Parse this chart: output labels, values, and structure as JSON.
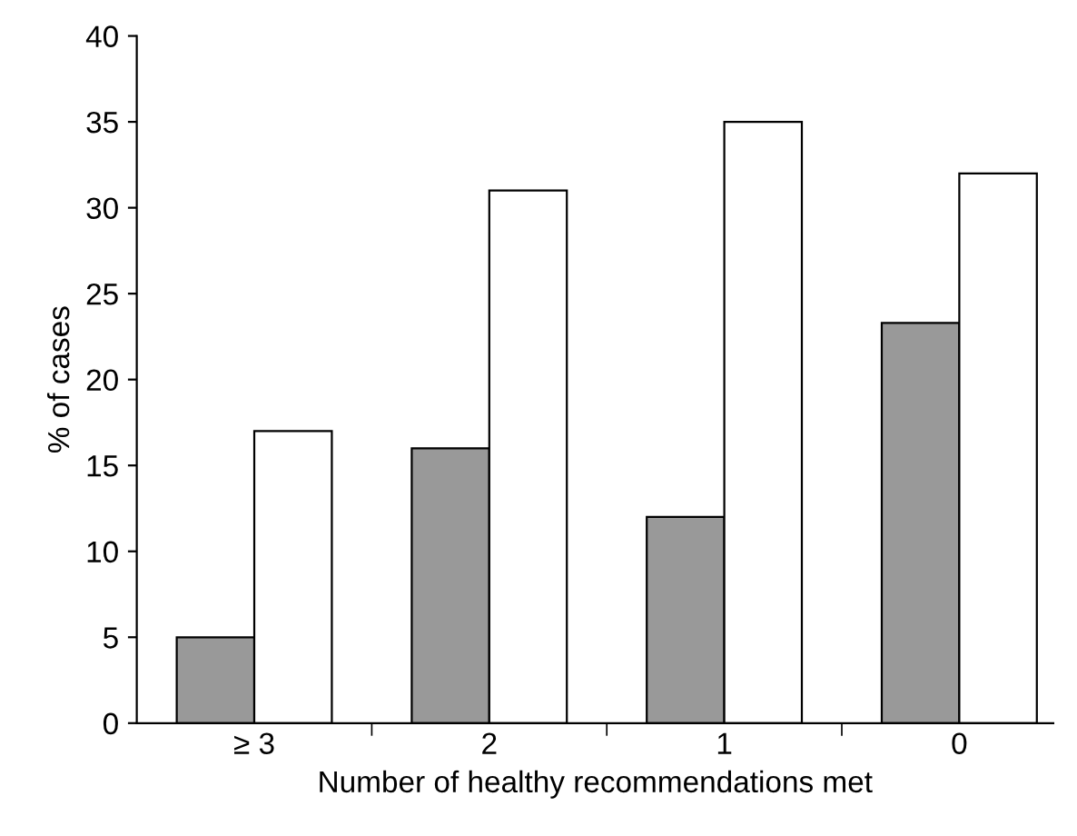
{
  "chart_data": {
    "type": "bar",
    "xlabel": "Number of healthy recommendations met",
    "ylabel": "% of cases",
    "categories": [
      "≥ 3",
      "2",
      "1",
      "0"
    ],
    "series": [
      {
        "color": "#999999",
        "values": [
          5,
          16,
          12,
          23.3
        ]
      },
      {
        "color": "#ffffff",
        "values": [
          17,
          31,
          35,
          32
        ]
      }
    ],
    "ylim": [
      0,
      40
    ],
    "yticks": [
      0,
      5,
      10,
      15,
      20,
      25,
      30,
      35,
      40
    ],
    "grid": false,
    "legend": false
  }
}
